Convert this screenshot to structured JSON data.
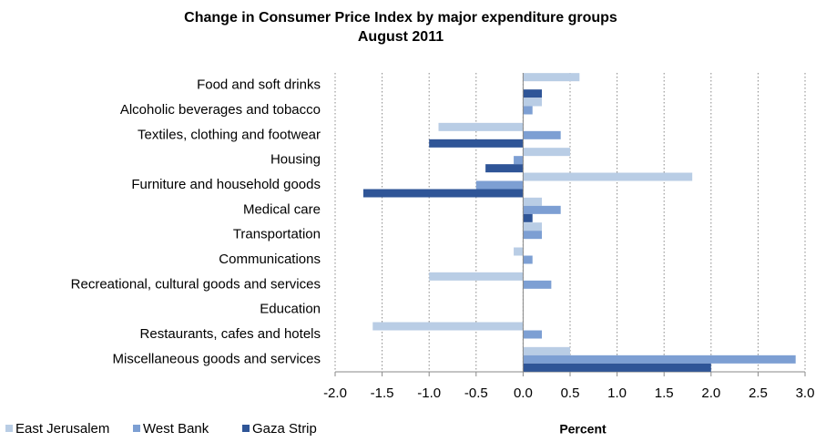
{
  "chart_data": {
    "type": "hbar",
    "title": "Change in Consumer Price Index by major expenditure groups",
    "subtitle": "August 2011",
    "x_label": "Percent",
    "categories": [
      "Food and soft drinks",
      "Alcoholic beverages and tobacco",
      "Textiles, clothing and footwear",
      "Housing",
      "Furniture and household goods",
      "Medical care",
      "Transportation",
      "Communications",
      "Recreational, cultural goods and services",
      "Education",
      "Restaurants, cafes and hotels",
      "Miscellaneous goods and services"
    ],
    "series": [
      {
        "name": "East Jerusalem",
        "color": "#b9cde5",
        "values": [
          0.6,
          0.2,
          -0.9,
          0.5,
          1.8,
          0.2,
          0.2,
          -0.1,
          -1.0,
          0,
          -1.6,
          0.5
        ]
      },
      {
        "name": "West Bank",
        "color": "#7d9fd3",
        "values": [
          0,
          0.1,
          0.4,
          -0.1,
          -0.5,
          0.4,
          0.2,
          0.1,
          0.3,
          0,
          0.2,
          2.9
        ]
      },
      {
        "name": "Gaza Strip",
        "color": "#2f5597",
        "values": [
          0.2,
          0,
          -1.0,
          -0.4,
          -1.7,
          0.1,
          0,
          0,
          0,
          0,
          0,
          2.0
        ]
      }
    ],
    "xlim": [
      -2,
      3
    ],
    "xticks": [
      {
        "value": -2,
        "label": "-2.0"
      },
      -1.5,
      {
        "value": -1,
        "label": "-1.0"
      },
      -0.5,
      {
        "value": 0,
        "label": "0.0"
      },
      0.5,
      {
        "value": 1,
        "label": "1.0"
      },
      1.5,
      {
        "value": 2,
        "label": "2.0"
      },
      2.5,
      {
        "value": 3,
        "label": "3.0"
      }
    ],
    "grid": true,
    "legend": "bottom-left"
  }
}
